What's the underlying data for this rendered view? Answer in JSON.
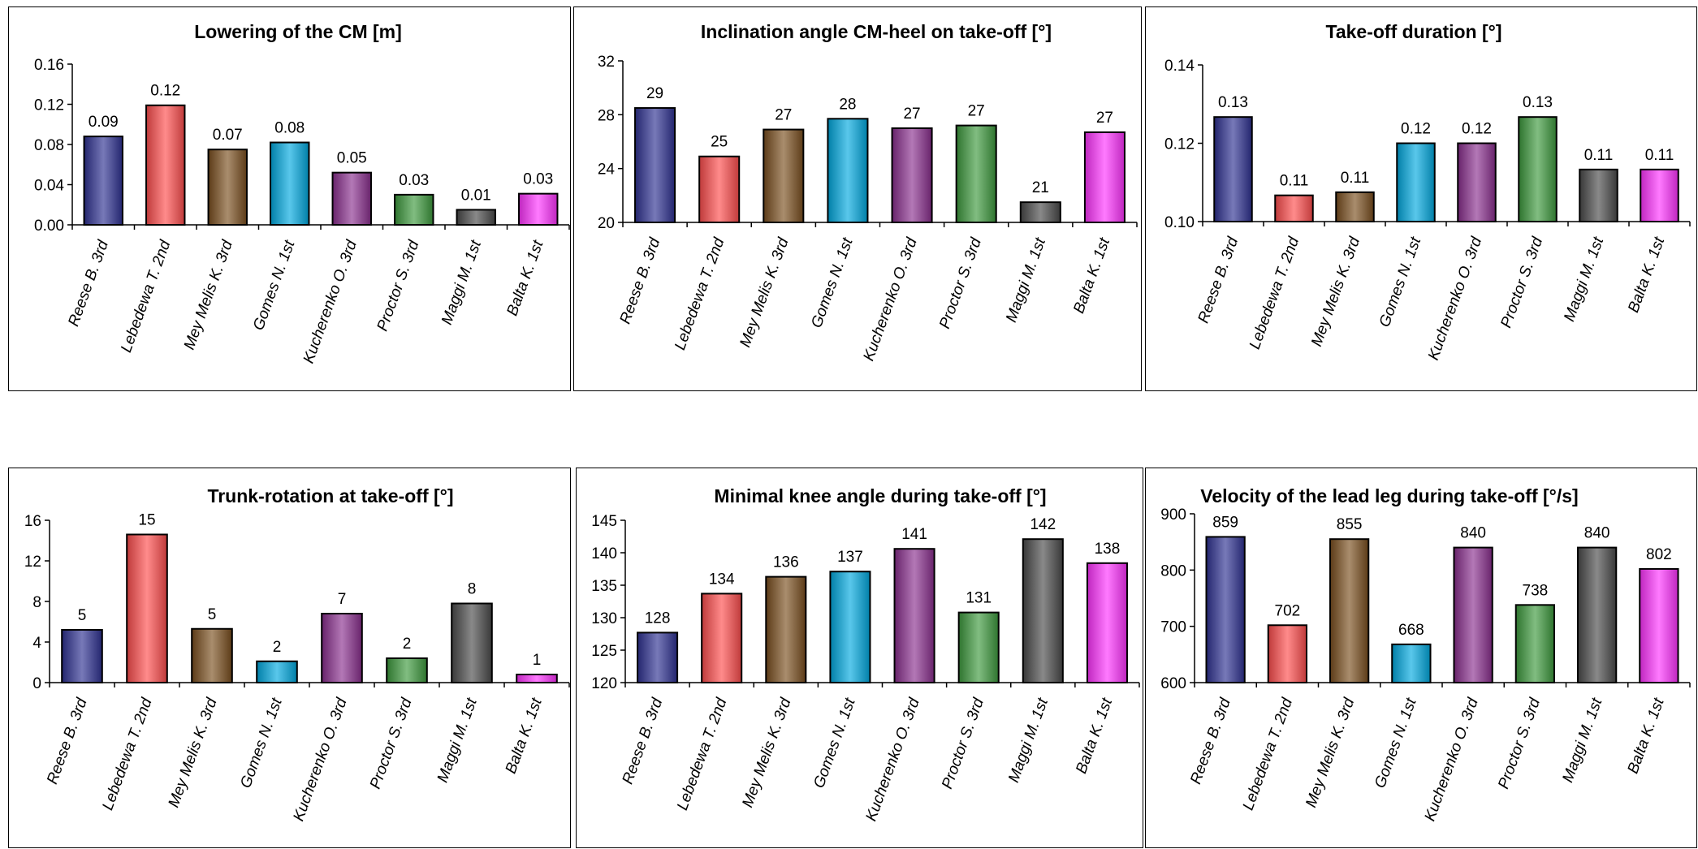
{
  "categories": [
    "Reese B. 3rd",
    "Lebedewa T. 2nd",
    "Mey Melis K. 3rd",
    "Gomes N. 1st",
    "Kucherenko O. 3rd",
    "Proctor S. 3rd",
    "Maggi M. 1st",
    "Balta K. 1st"
  ],
  "bar_colors": [
    "#2e3192",
    "#ff4d4d",
    "#7a4f1e",
    "#00a9e0",
    "#8a2f8f",
    "#3d9a3d",
    "#4a4a4a",
    "#ff33ff"
  ],
  "chart_data": [
    {
      "type": "bar",
      "title": "Lowering of the CM  [m]",
      "categories": [
        "Reese B. 3rd",
        "Lebedewa T. 2nd",
        "Mey Melis K. 3rd",
        "Gomes N. 1st",
        "Kucherenko O. 3rd",
        "Proctor S. 3rd",
        "Maggi M. 1st",
        "Balta K. 1st"
      ],
      "values": [
        0.088,
        0.119,
        0.075,
        0.082,
        0.052,
        0.03,
        0.015,
        0.031
      ],
      "data_labels": [
        "0.09",
        "0.12",
        "0.07",
        "0.08",
        "0.05",
        "0.03",
        "0.01",
        "0.03"
      ],
      "ylim": [
        0,
        0.16
      ],
      "yticks": [
        "0.00",
        "0.04",
        "0.08",
        "0.12",
        "0.16"
      ],
      "ytick_values": [
        0,
        0.04,
        0.08,
        0.12,
        0.16
      ]
    },
    {
      "type": "bar",
      "title": "Inclination angle CM-heel on take-off [°]",
      "categories": [
        "Reese B. 3rd",
        "Lebedewa T. 2nd",
        "Mey Melis K. 3rd",
        "Gomes N. 1st",
        "Kucherenko O. 3rd",
        "Proctor S. 3rd",
        "Maggi M. 1st",
        "Balta K. 1st"
      ],
      "values": [
        28.5,
        24.9,
        26.9,
        27.7,
        27.0,
        27.2,
        21.5,
        26.7
      ],
      "data_labels": [
        "29",
        "25",
        "27",
        "28",
        "27",
        "27",
        "21",
        "27"
      ],
      "ylim": [
        20,
        32
      ],
      "yticks": [
        "20",
        "24",
        "28",
        "32"
      ],
      "ytick_values": [
        20,
        24,
        28,
        32
      ]
    },
    {
      "type": "bar",
      "title": "Take-off duration [°]",
      "categories": [
        "Reese B. 3rd",
        "Lebedewa T. 2nd",
        "Mey Melis K. 3rd",
        "Gomes N. 1st",
        "Kucherenko O. 3rd",
        "Proctor S. 3rd",
        "Maggi M. 1st",
        "Balta K. 1st"
      ],
      "values": [
        0.1267,
        0.1067,
        0.1075,
        0.12,
        0.12,
        0.1267,
        0.1133,
        0.1133
      ],
      "data_labels": [
        "0.13",
        "0.11",
        "0.11",
        "0.12",
        "0.12",
        "0.13",
        "0.11",
        "0.11"
      ],
      "ylim": [
        0.1,
        0.14
      ],
      "yticks": [
        "0.10",
        "0.12",
        "0.14"
      ],
      "ytick_values": [
        0.1,
        0.12,
        0.14
      ]
    },
    {
      "type": "bar",
      "title": "Trunk-rotation at take-off  [°]",
      "categories": [
        "Reese B. 3rd",
        "Lebedewa T. 2nd",
        "Mey Melis K. 3rd",
        "Gomes N. 1st",
        "Kucherenko O. 3rd",
        "Proctor S. 3rd",
        "Maggi M. 1st",
        "Balta K. 1st"
      ],
      "values": [
        5.2,
        14.6,
        5.3,
        2.1,
        6.8,
        2.4,
        7.8,
        0.8
      ],
      "data_labels": [
        "5",
        "15",
        "5",
        "2",
        "7",
        "2",
        "8",
        "1"
      ],
      "ylim": [
        0,
        16
      ],
      "yticks": [
        "0",
        "4",
        "8",
        "12",
        "16"
      ],
      "ytick_values": [
        0,
        4,
        8,
        12,
        16
      ]
    },
    {
      "type": "bar",
      "title": "Minimal knee angle during take-off [°]",
      "categories": [
        "Reese B. 3rd",
        "Lebedewa T. 2nd",
        "Mey Melis K. 3rd",
        "Gomes N. 1st",
        "Kucherenko O. 3rd",
        "Proctor S. 3rd",
        "Maggi M. 1st",
        "Balta K. 1st"
      ],
      "values": [
        127.7,
        133.7,
        136.3,
        137.1,
        140.6,
        130.8,
        142.1,
        138.4
      ],
      "data_labels": [
        "128",
        "134",
        "136",
        "137",
        "141",
        "131",
        "142",
        "138"
      ],
      "ylim": [
        120,
        145
      ],
      "yticks": [
        "120",
        "125",
        "130",
        "135",
        "140",
        "145"
      ],
      "ytick_values": [
        120,
        125,
        130,
        135,
        140,
        145
      ]
    },
    {
      "type": "bar",
      "title": "Velocity of the lead leg during take-off [°/s]",
      "categories": [
        "Reese B. 3rd",
        "Lebedewa T. 2nd",
        "Mey Melis K. 3rd",
        "Gomes N. 1st",
        "Kucherenko O. 3rd",
        "Proctor S. 3rd",
        "Maggi M. 1st",
        "Balta K. 1st"
      ],
      "values": [
        859,
        702,
        855,
        668,
        840,
        738,
        840,
        802
      ],
      "data_labels": [
        "859",
        "702",
        "855",
        "668",
        "840",
        "738",
        "840",
        "802"
      ],
      "ylim": [
        600,
        900
      ],
      "yticks": [
        "600",
        "700",
        "800",
        "900"
      ],
      "ytick_values": [
        600,
        700,
        800,
        900
      ]
    }
  ]
}
